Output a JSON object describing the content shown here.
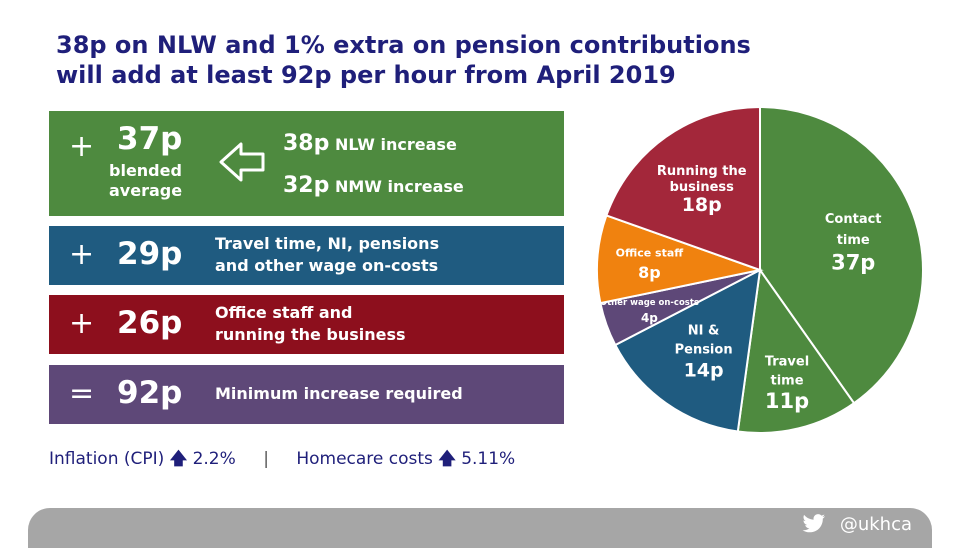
{
  "title": {
    "line1": "38p on NLW and 1% extra on pension contributions",
    "line2": "will add at least 92p per hour from April 2019"
  },
  "boxes": {
    "green": {
      "op": "+",
      "amount": "37p",
      "blended_line1": "blended",
      "blended_line2": "average",
      "nlw_amount": "38p",
      "nlw_label": "NLW increase",
      "nmw_amount": "32p",
      "nmw_label": "NMW increase"
    },
    "blue": {
      "op": "+",
      "amount": "29p",
      "desc_line1": "Travel time, NI, pensions",
      "desc_line2": "and other wage on-costs"
    },
    "red": {
      "op": "+",
      "amount": "26p",
      "desc_line1": "Office staff and",
      "desc_line2": "running the business"
    },
    "purple": {
      "op": "=",
      "amount": "92p",
      "desc_line1": "Minimum increase required"
    }
  },
  "footer": {
    "inflation_label": "Inflation (CPI)",
    "inflation_value": "2.2%",
    "separator": "|",
    "homecare_label": "Homecare costs",
    "homecare_value": "5.11%",
    "arrow_icon": "up-arrow-icon"
  },
  "bottom_bar": {
    "icon": "twitter-bird-icon",
    "handle": "@ukhca"
  },
  "colors": {
    "green": "#4e8a3f",
    "blue": "#1f5b80",
    "red": "#8d0f1d",
    "purple": "#5e4878",
    "orange": "#f0820f",
    "crimson": "#a3273a",
    "title": "#1f1f7a"
  },
  "chart_data": {
    "type": "pie",
    "unit": "p",
    "total": 92,
    "slices": [
      {
        "label_lines": [
          "Contact",
          "time"
        ],
        "value": 37,
        "value_label": "37p",
        "color": "#4e8a3f"
      },
      {
        "label_lines": [
          "Travel",
          "time"
        ],
        "value": 11,
        "value_label": "11p",
        "color": "#4e8a3f"
      },
      {
        "label_lines": [
          "NI &",
          "Pension"
        ],
        "value": 14,
        "value_label": "14p",
        "color": "#1f5b80"
      },
      {
        "label_lines": [
          "Other wage on-costs"
        ],
        "value": 4,
        "value_label": "4p",
        "color": "#5e4878"
      },
      {
        "label_lines": [
          "Office staff"
        ],
        "value": 8,
        "value_label": "8p",
        "color": "#f0820f"
      },
      {
        "label_lines": [
          "Running the",
          "business"
        ],
        "value": 18,
        "value_label": "18p",
        "color": "#a3273a"
      }
    ]
  }
}
